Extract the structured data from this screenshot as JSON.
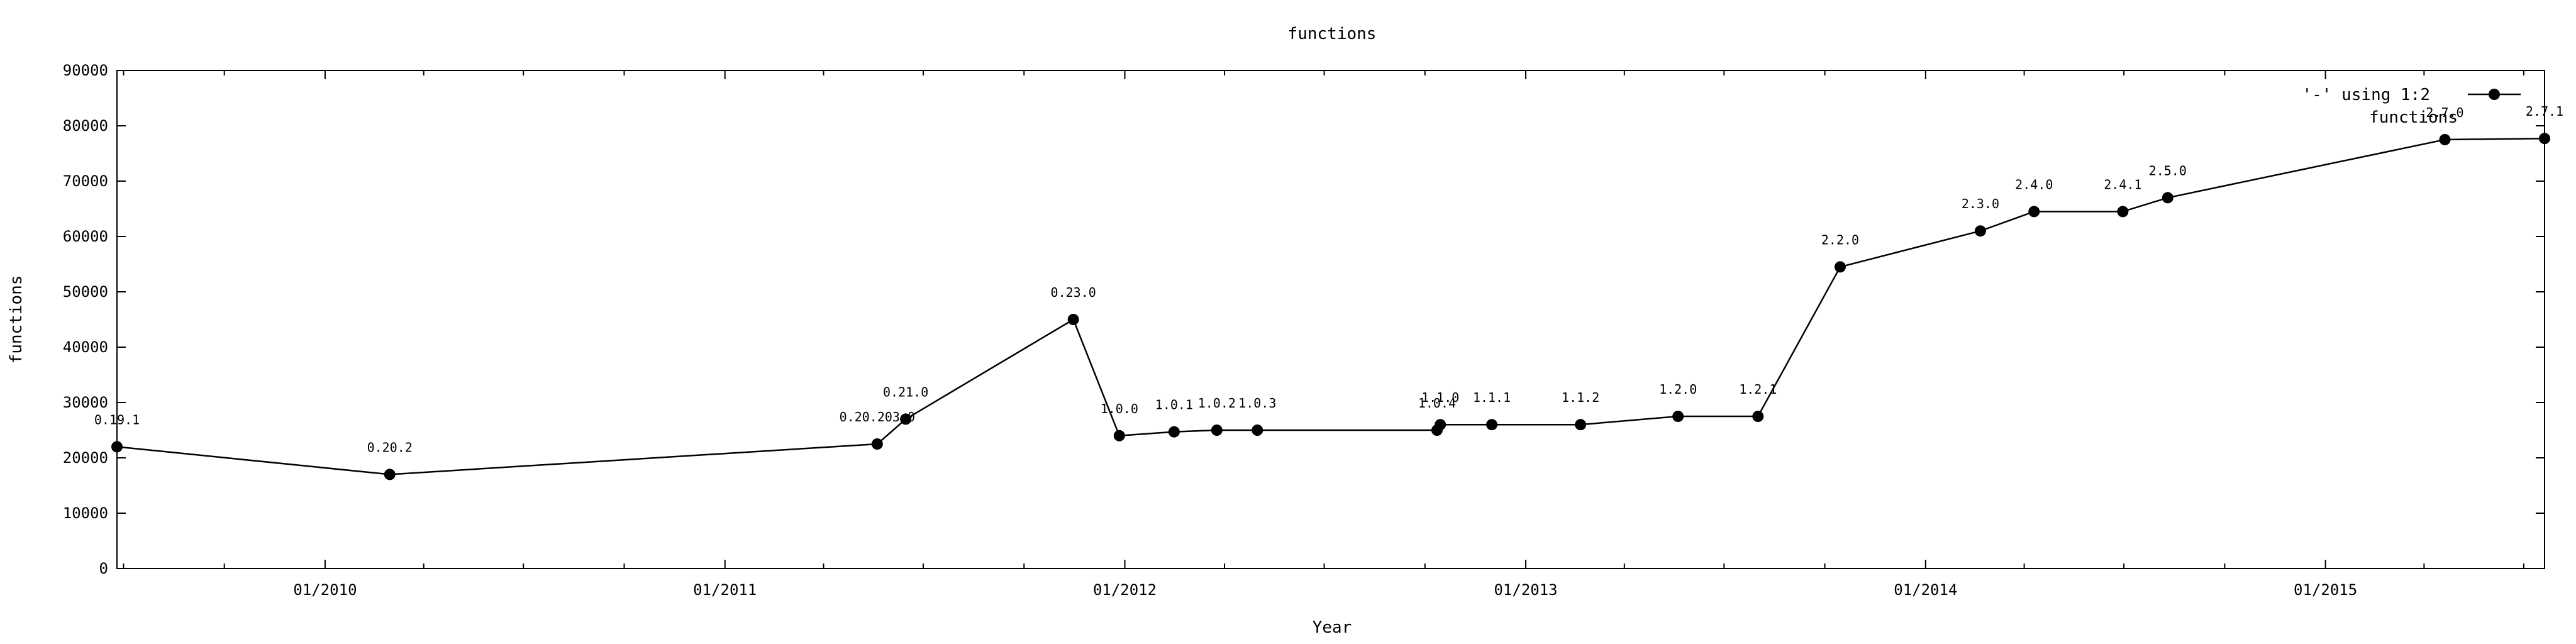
{
  "chart_data": {
    "type": "line",
    "title": "functions",
    "xlabel": "Year",
    "ylabel": "functions",
    "ylim": [
      0,
      90000
    ],
    "xlim": [
      "2009-06-25",
      "2015-07-20"
    ],
    "yticks": [
      0,
      10000,
      20000,
      30000,
      40000,
      50000,
      60000,
      70000,
      80000,
      90000
    ],
    "xticks": [
      {
        "date": "2010-01-01",
        "label": "01/2010"
      },
      {
        "date": "2011-01-01",
        "label": "01/2011"
      },
      {
        "date": "2012-01-01",
        "label": "01/2012"
      },
      {
        "date": "2013-01-01",
        "label": "01/2013"
      },
      {
        "date": "2014-01-01",
        "label": "01/2014"
      },
      {
        "date": "2015-01-01",
        "label": "01/2015"
      }
    ],
    "grid": false,
    "legend": {
      "position": "top-right",
      "entries": [
        "'-' using 1:2",
        "functions"
      ]
    },
    "series": [
      {
        "points": [
          {
            "x": "2009-06-25",
            "y": 22000,
            "label": "0.19.1"
          },
          {
            "x": "2010-03-01",
            "y": 17000,
            "label": "0.20.2"
          },
          {
            "x": "2011-05-20",
            "y": 22500,
            "label": "0.20.203.0"
          },
          {
            "x": "2011-06-15",
            "y": 27000,
            "label": "0.21.0"
          },
          {
            "x": "2011-11-15",
            "y": 45000,
            "label": "0.23.0"
          },
          {
            "x": "2011-12-27",
            "y": 24000,
            "label": "1.0.0"
          },
          {
            "x": "2012-02-15",
            "y": 24700,
            "label": "1.0.1"
          },
          {
            "x": "2012-03-25",
            "y": 25000,
            "label": "1.0.2"
          },
          {
            "x": "2012-05-01",
            "y": 25000,
            "label": "1.0.3"
          },
          {
            "x": "2012-10-12",
            "y": 25000,
            "label": "1.0.4"
          },
          {
            "x": "2012-10-15",
            "y": 26000,
            "label": "1.1.0"
          },
          {
            "x": "2012-12-01",
            "y": 26000,
            "label": "1.1.1"
          },
          {
            "x": "2013-02-20",
            "y": 26000,
            "label": "1.1.2"
          },
          {
            "x": "2013-05-20",
            "y": 27500,
            "label": "1.2.0"
          },
          {
            "x": "2013-08-01",
            "y": 27500,
            "label": "1.2.1"
          },
          {
            "x": "2013-10-15",
            "y": 54500,
            "label": "2.2.0"
          },
          {
            "x": "2014-02-20",
            "y": 61000,
            "label": "2.3.0"
          },
          {
            "x": "2014-04-10",
            "y": 64500,
            "label": "2.4.0"
          },
          {
            "x": "2014-06-30",
            "y": 64500,
            "label": "2.4.1"
          },
          {
            "x": "2014-08-10",
            "y": 67000,
            "label": "2.5.0"
          },
          {
            "x": "2015-04-20",
            "y": 77500,
            "label": "2.7.0"
          },
          {
            "x": "2015-07-20",
            "y": 77700,
            "label": "2.7.1"
          }
        ]
      }
    ]
  }
}
